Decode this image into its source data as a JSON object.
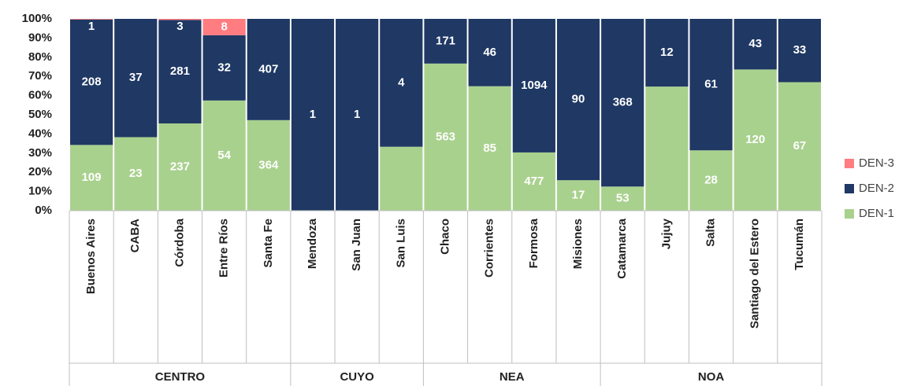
{
  "chart_data": {
    "type": "bar",
    "stacking": "percent",
    "categories": [
      "Buenos Aires",
      "CABA",
      "Córdoba",
      "Entre Ríos",
      "Santa Fe",
      "Mendoza",
      "San Juan",
      "San Luis",
      "Chaco",
      "Corrientes",
      "Formosa",
      "Misiones",
      "Catamarca",
      "Jujuy",
      "Salta",
      "Santiago del Estero",
      "Tucumán"
    ],
    "category_groups": [
      "CENTRO",
      "CENTRO",
      "CENTRO",
      "CENTRO",
      "CENTRO",
      "CUYO",
      "CUYO",
      "CUYO",
      "NEA",
      "NEA",
      "NEA",
      "NEA",
      "NOA",
      "NOA",
      "NOA",
      "NOA",
      "NOA"
    ],
    "series": [
      {
        "name": "DEN-1",
        "color": "#a9d18e",
        "values": [
          109,
          23,
          237,
          54,
          364,
          0,
          0,
          2,
          563,
          85,
          477,
          17,
          53,
          22,
          28,
          120,
          67
        ],
        "value_labels": [
          "109",
          "23",
          "237",
          "54",
          "364",
          null,
          null,
          null,
          "563",
          "85",
          "477",
          "17",
          "53",
          null,
          "28",
          "120",
          "67"
        ]
      },
      {
        "name": "DEN-2",
        "color": "#1f3864",
        "values": [
          208,
          37,
          281,
          32,
          407,
          1,
          1,
          4,
          171,
          46,
          1094,
          90,
          368,
          12,
          61,
          43,
          33
        ],
        "value_labels": [
          "208",
          "37",
          "281",
          "32",
          "407",
          "1",
          "1",
          "4",
          "171",
          "46",
          "1094",
          "90",
          "368",
          "12",
          "61",
          "43",
          "33"
        ]
      },
      {
        "name": "DEN-3",
        "color": "#ff7c80",
        "values": [
          1,
          0,
          3,
          8,
          0,
          0,
          0,
          0,
          0,
          0,
          0,
          0,
          0,
          0,
          0,
          0,
          0
        ],
        "value_labels": [
          "1",
          null,
          "3",
          "8",
          null,
          null,
          null,
          null,
          null,
          null,
          null,
          null,
          null,
          null,
          null,
          null,
          null
        ]
      }
    ],
    "ylim": [
      0,
      100
    ],
    "yticks": [
      {
        "value": 0,
        "label": "0%"
      },
      {
        "value": 10,
        "label": "10%"
      },
      {
        "value": 20,
        "label": "20%"
      },
      {
        "value": 30,
        "label": "30%"
      },
      {
        "value": 40,
        "label": "40%"
      },
      {
        "value": 50,
        "label": "50%"
      },
      {
        "value": 60,
        "label": "60%"
      },
      {
        "value": 70,
        "label": "70%"
      },
      {
        "value": 80,
        "label": "80%"
      },
      {
        "value": 90,
        "label": "90%"
      },
      {
        "value": 100,
        "label": "100%"
      }
    ],
    "grid": false,
    "legend": "right"
  }
}
